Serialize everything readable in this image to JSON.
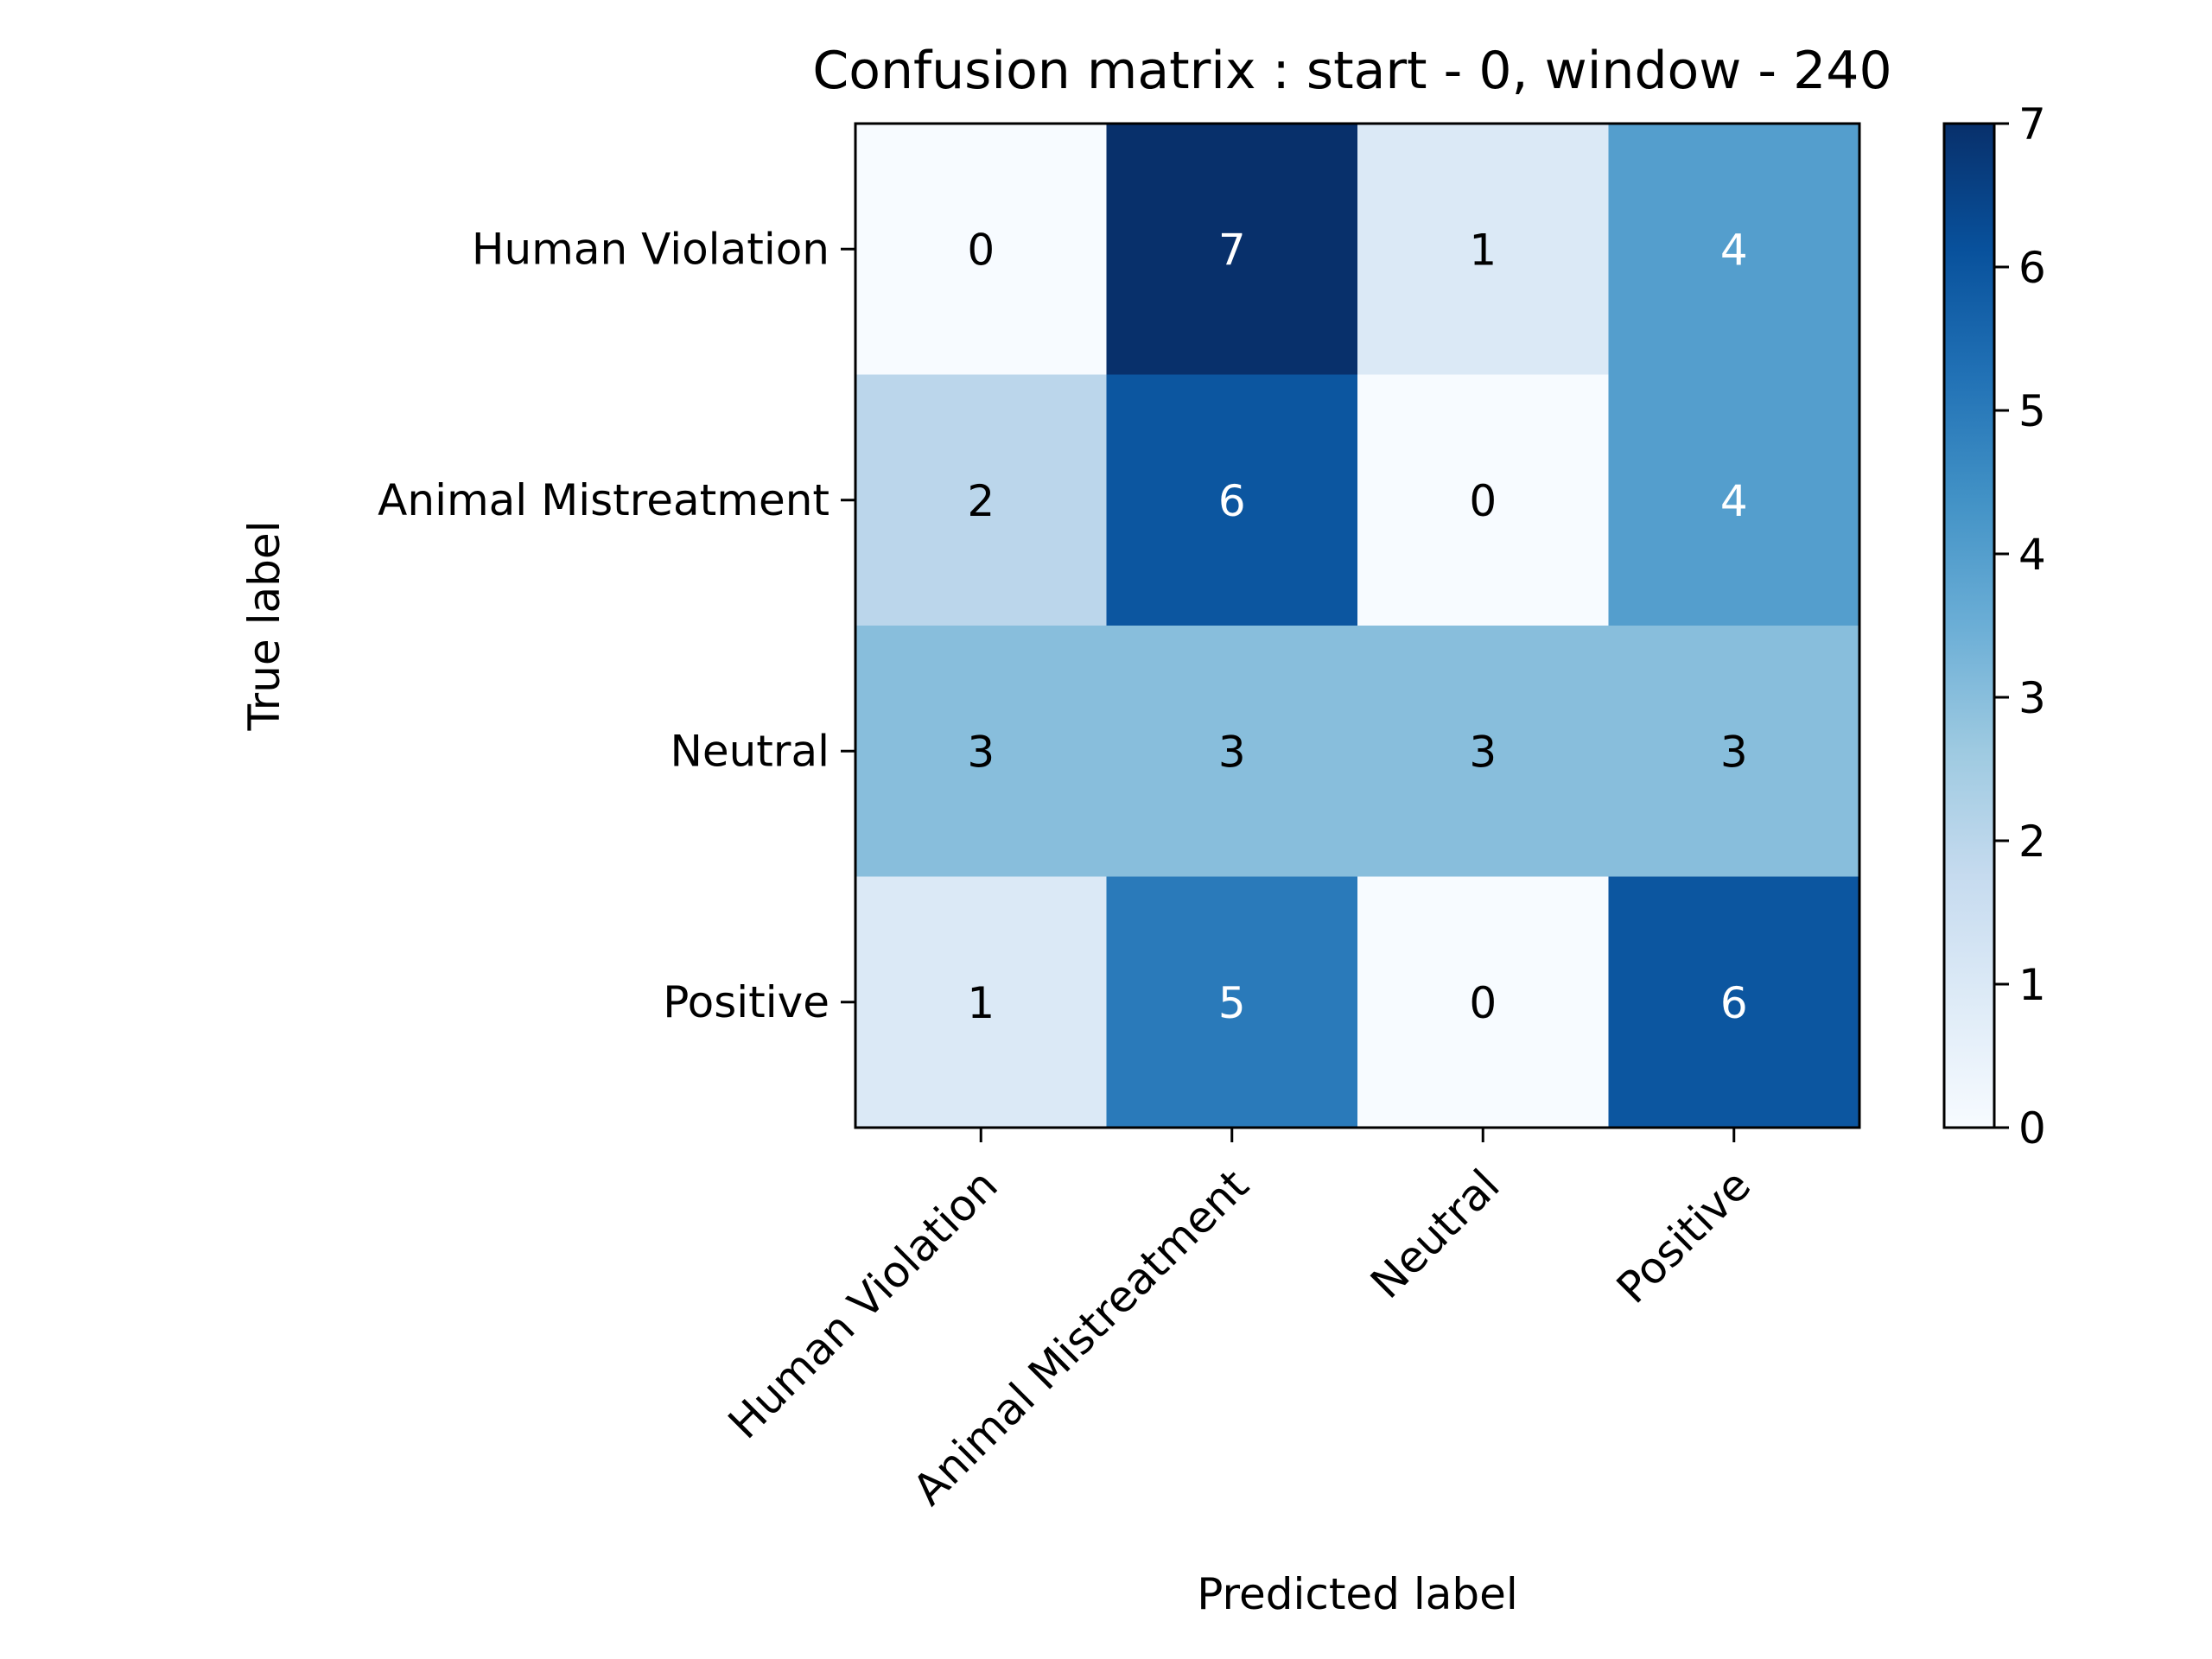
{
  "chart_data": {
    "type": "heatmap",
    "title": "Confusion matrix : start - 0, window - 240",
    "xlabel": "Predicted label",
    "ylabel": "True label",
    "x_categories": [
      "Human Violation",
      "Animal Mistreatment",
      "Neutral",
      "Positive"
    ],
    "y_categories": [
      "Human Violation",
      "Animal Mistreatment",
      "Neutral",
      "Positive"
    ],
    "matrix": [
      [
        0,
        7,
        1,
        4
      ],
      [
        2,
        6,
        0,
        4
      ],
      [
        3,
        3,
        3,
        3
      ],
      [
        1,
        5,
        0,
        6
      ]
    ],
    "colorbar": {
      "min": 0,
      "max": 7,
      "ticks": [
        "0",
        "1",
        "2",
        "3",
        "4",
        "5",
        "6",
        "7"
      ]
    },
    "colormap": "Blues",
    "colors": {
      "text_dark": "#000000",
      "text_light": "#ffffff"
    }
  }
}
